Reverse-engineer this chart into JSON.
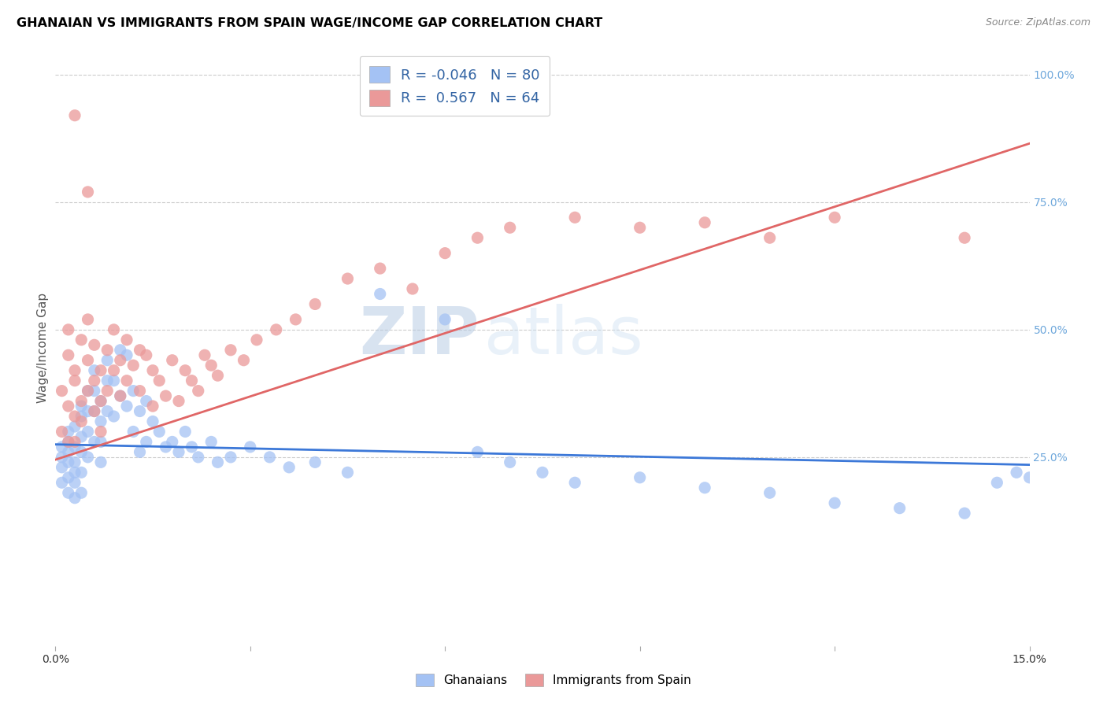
{
  "title": "GHANAIAN VS IMMIGRANTS FROM SPAIN WAGE/INCOME GAP CORRELATION CHART",
  "source": "Source: ZipAtlas.com",
  "ylabel": "Wage/Income Gap",
  "xlim": [
    0.0,
    0.15
  ],
  "ylim": [
    -0.12,
    1.05
  ],
  "blue_R": -0.046,
  "blue_N": 80,
  "pink_R": 0.567,
  "pink_N": 64,
  "blue_color": "#a4c2f4",
  "pink_color": "#ea9999",
  "blue_line_color": "#3c78d8",
  "pink_line_color": "#e06666",
  "legend_label_blue": "Ghanaians",
  "legend_label_pink": "Immigrants from Spain",
  "watermark": "ZIPatlas",
  "background_color": "#ffffff",
  "grid_color": "#cccccc",
  "title_color": "#000000",
  "rtick_color": "#6fa8dc",
  "blue_scatter_x": [
    0.001,
    0.001,
    0.001,
    0.001,
    0.002,
    0.002,
    0.002,
    0.002,
    0.002,
    0.002,
    0.003,
    0.003,
    0.003,
    0.003,
    0.003,
    0.003,
    0.004,
    0.004,
    0.004,
    0.004,
    0.004,
    0.004,
    0.005,
    0.005,
    0.005,
    0.005,
    0.006,
    0.006,
    0.006,
    0.006,
    0.007,
    0.007,
    0.007,
    0.007,
    0.008,
    0.008,
    0.008,
    0.009,
    0.009,
    0.01,
    0.01,
    0.011,
    0.011,
    0.012,
    0.012,
    0.013,
    0.013,
    0.014,
    0.014,
    0.015,
    0.016,
    0.017,
    0.018,
    0.019,
    0.02,
    0.021,
    0.022,
    0.024,
    0.025,
    0.027,
    0.03,
    0.033,
    0.036,
    0.04,
    0.045,
    0.05,
    0.06,
    0.065,
    0.07,
    0.075,
    0.08,
    0.09,
    0.1,
    0.11,
    0.12,
    0.13,
    0.14,
    0.145,
    0.148,
    0.15
  ],
  "blue_scatter_y": [
    0.25,
    0.23,
    0.27,
    0.2,
    0.28,
    0.24,
    0.21,
    0.18,
    0.26,
    0.3,
    0.31,
    0.27,
    0.24,
    0.22,
    0.2,
    0.17,
    0.35,
    0.33,
    0.29,
    0.26,
    0.22,
    0.18,
    0.38,
    0.34,
    0.3,
    0.25,
    0.42,
    0.38,
    0.34,
    0.28,
    0.36,
    0.32,
    0.28,
    0.24,
    0.44,
    0.4,
    0.34,
    0.4,
    0.33,
    0.46,
    0.37,
    0.45,
    0.35,
    0.38,
    0.3,
    0.34,
    0.26,
    0.36,
    0.28,
    0.32,
    0.3,
    0.27,
    0.28,
    0.26,
    0.3,
    0.27,
    0.25,
    0.28,
    0.24,
    0.25,
    0.27,
    0.25,
    0.23,
    0.24,
    0.22,
    0.57,
    0.52,
    0.26,
    0.24,
    0.22,
    0.2,
    0.21,
    0.19,
    0.18,
    0.16,
    0.15,
    0.14,
    0.2,
    0.22,
    0.21
  ],
  "pink_scatter_x": [
    0.001,
    0.001,
    0.002,
    0.002,
    0.002,
    0.002,
    0.003,
    0.003,
    0.003,
    0.003,
    0.004,
    0.004,
    0.004,
    0.005,
    0.005,
    0.005,
    0.006,
    0.006,
    0.006,
    0.007,
    0.007,
    0.007,
    0.008,
    0.008,
    0.009,
    0.009,
    0.01,
    0.01,
    0.011,
    0.011,
    0.012,
    0.013,
    0.013,
    0.014,
    0.015,
    0.015,
    0.016,
    0.017,
    0.018,
    0.019,
    0.02,
    0.021,
    0.022,
    0.023,
    0.024,
    0.025,
    0.027,
    0.029,
    0.031,
    0.034,
    0.037,
    0.04,
    0.045,
    0.05,
    0.055,
    0.06,
    0.065,
    0.07,
    0.08,
    0.09,
    0.1,
    0.11,
    0.12,
    0.14
  ],
  "pink_scatter_y": [
    0.38,
    0.3,
    0.45,
    0.35,
    0.28,
    0.5,
    0.4,
    0.33,
    0.42,
    0.28,
    0.48,
    0.36,
    0.32,
    0.52,
    0.44,
    0.38,
    0.47,
    0.4,
    0.34,
    0.42,
    0.36,
    0.3,
    0.46,
    0.38,
    0.5,
    0.42,
    0.44,
    0.37,
    0.48,
    0.4,
    0.43,
    0.46,
    0.38,
    0.45,
    0.42,
    0.35,
    0.4,
    0.37,
    0.44,
    0.36,
    0.42,
    0.4,
    0.38,
    0.45,
    0.43,
    0.41,
    0.46,
    0.44,
    0.48,
    0.5,
    0.52,
    0.55,
    0.6,
    0.62,
    0.58,
    0.65,
    0.68,
    0.7,
    0.72,
    0.7,
    0.71,
    0.68,
    0.72,
    0.68
  ],
  "pink_outlier_x": [
    0.003
  ],
  "pink_outlier_y": [
    0.92
  ],
  "pink_outlier2_x": [
    0.005
  ],
  "pink_outlier2_y": [
    0.77
  ],
  "blue_trend_x": [
    0.0,
    0.15
  ],
  "blue_trend_y": [
    0.275,
    0.235
  ],
  "pink_trend_x": [
    0.0,
    0.15
  ],
  "pink_trend_y": [
    0.245,
    0.865
  ]
}
